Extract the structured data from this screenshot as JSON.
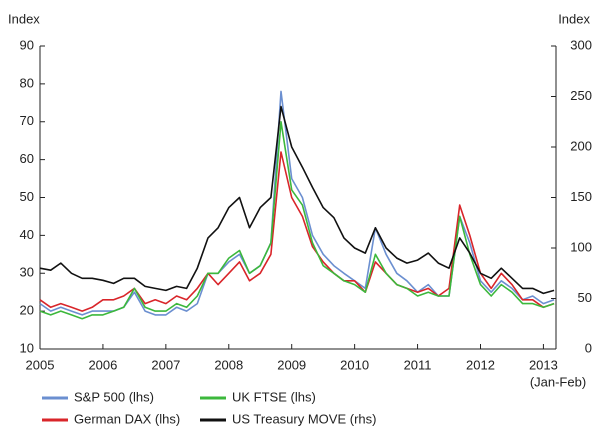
{
  "chart_data": {
    "type": "line",
    "y_label": "Index",
    "y2_label": "Index",
    "x_note": "(Jan-Feb)",
    "x": [
      2005,
      2005.17,
      2005.33,
      2005.5,
      2005.67,
      2005.83,
      2006,
      2006.17,
      2006.33,
      2006.5,
      2006.67,
      2006.83,
      2007,
      2007.17,
      2007.33,
      2007.5,
      2007.67,
      2007.83,
      2008,
      2008.17,
      2008.33,
      2008.5,
      2008.67,
      2008.83,
      2009,
      2009.17,
      2009.33,
      2009.5,
      2009.67,
      2009.83,
      2010,
      2010.17,
      2010.33,
      2010.5,
      2010.67,
      2010.83,
      2011,
      2011.17,
      2011.33,
      2011.5,
      2011.67,
      2011.83,
      2012,
      2012.17,
      2012.33,
      2012.5,
      2012.67,
      2012.83,
      2013,
      2013.17
    ],
    "series": [
      {
        "name": "S&P 500 (lhs)",
        "color": "#6b8fd0",
        "values": [
          22,
          20,
          21,
          20,
          19,
          20,
          20,
          20,
          21,
          25,
          20,
          19,
          19,
          21,
          20,
          22,
          30,
          30,
          33,
          35,
          30,
          32,
          38,
          78,
          55,
          50,
          40,
          35,
          32,
          30,
          28,
          26,
          42,
          35,
          30,
          28,
          25,
          27,
          24,
          24,
          45,
          38,
          28,
          25,
          28,
          26,
          23,
          24,
          22,
          23
        ]
      },
      {
        "name": "German DAX (lhs)",
        "color": "#d9252a",
        "values": [
          23,
          21,
          22,
          21,
          20,
          21,
          23,
          23,
          24,
          26,
          22,
          23,
          22,
          24,
          23,
          26,
          30,
          27,
          30,
          33,
          28,
          30,
          35,
          62,
          50,
          45,
          37,
          33,
          30,
          28,
          28,
          25,
          33,
          30,
          27,
          26,
          25,
          26,
          24,
          26,
          48,
          40,
          30,
          26,
          30,
          27,
          23,
          23,
          21,
          22
        ]
      },
      {
        "name": "UK FTSE (lhs)",
        "color": "#3cb83c",
        "values": [
          20,
          19,
          20,
          19,
          18,
          19,
          19,
          20,
          21,
          26,
          21,
          20,
          20,
          22,
          21,
          24,
          30,
          30,
          34,
          36,
          30,
          32,
          38,
          70,
          52,
          48,
          38,
          32,
          30,
          28,
          27,
          25,
          35,
          30,
          27,
          26,
          24,
          25,
          24,
          24,
          45,
          35,
          27,
          24,
          27,
          25,
          22,
          22,
          21,
          22
        ]
      },
      {
        "name": "US Treasury MOVE (rhs)",
        "color": "#111111",
        "axis": "y2",
        "values": [
          80,
          78,
          85,
          75,
          70,
          70,
          68,
          65,
          70,
          70,
          62,
          60,
          58,
          62,
          60,
          80,
          110,
          120,
          140,
          150,
          120,
          140,
          150,
          240,
          200,
          180,
          160,
          140,
          130,
          110,
          100,
          95,
          120,
          100,
          90,
          85,
          88,
          95,
          85,
          80,
          110,
          95,
          75,
          70,
          80,
          70,
          60,
          60,
          55,
          58
        ]
      }
    ],
    "xlim": [
      2005,
      2013.2
    ],
    "xticks": [
      2005,
      2006,
      2007,
      2008,
      2009,
      2010,
      2011,
      2012,
      2013
    ],
    "ylim": [
      10,
      90
    ],
    "yticks": [
      10,
      20,
      30,
      40,
      50,
      60,
      70,
      80,
      90
    ],
    "y2lim": [
      0,
      300
    ],
    "y2ticks": [
      0,
      50,
      100,
      150,
      200,
      250,
      300
    ],
    "legend": "bottom"
  }
}
